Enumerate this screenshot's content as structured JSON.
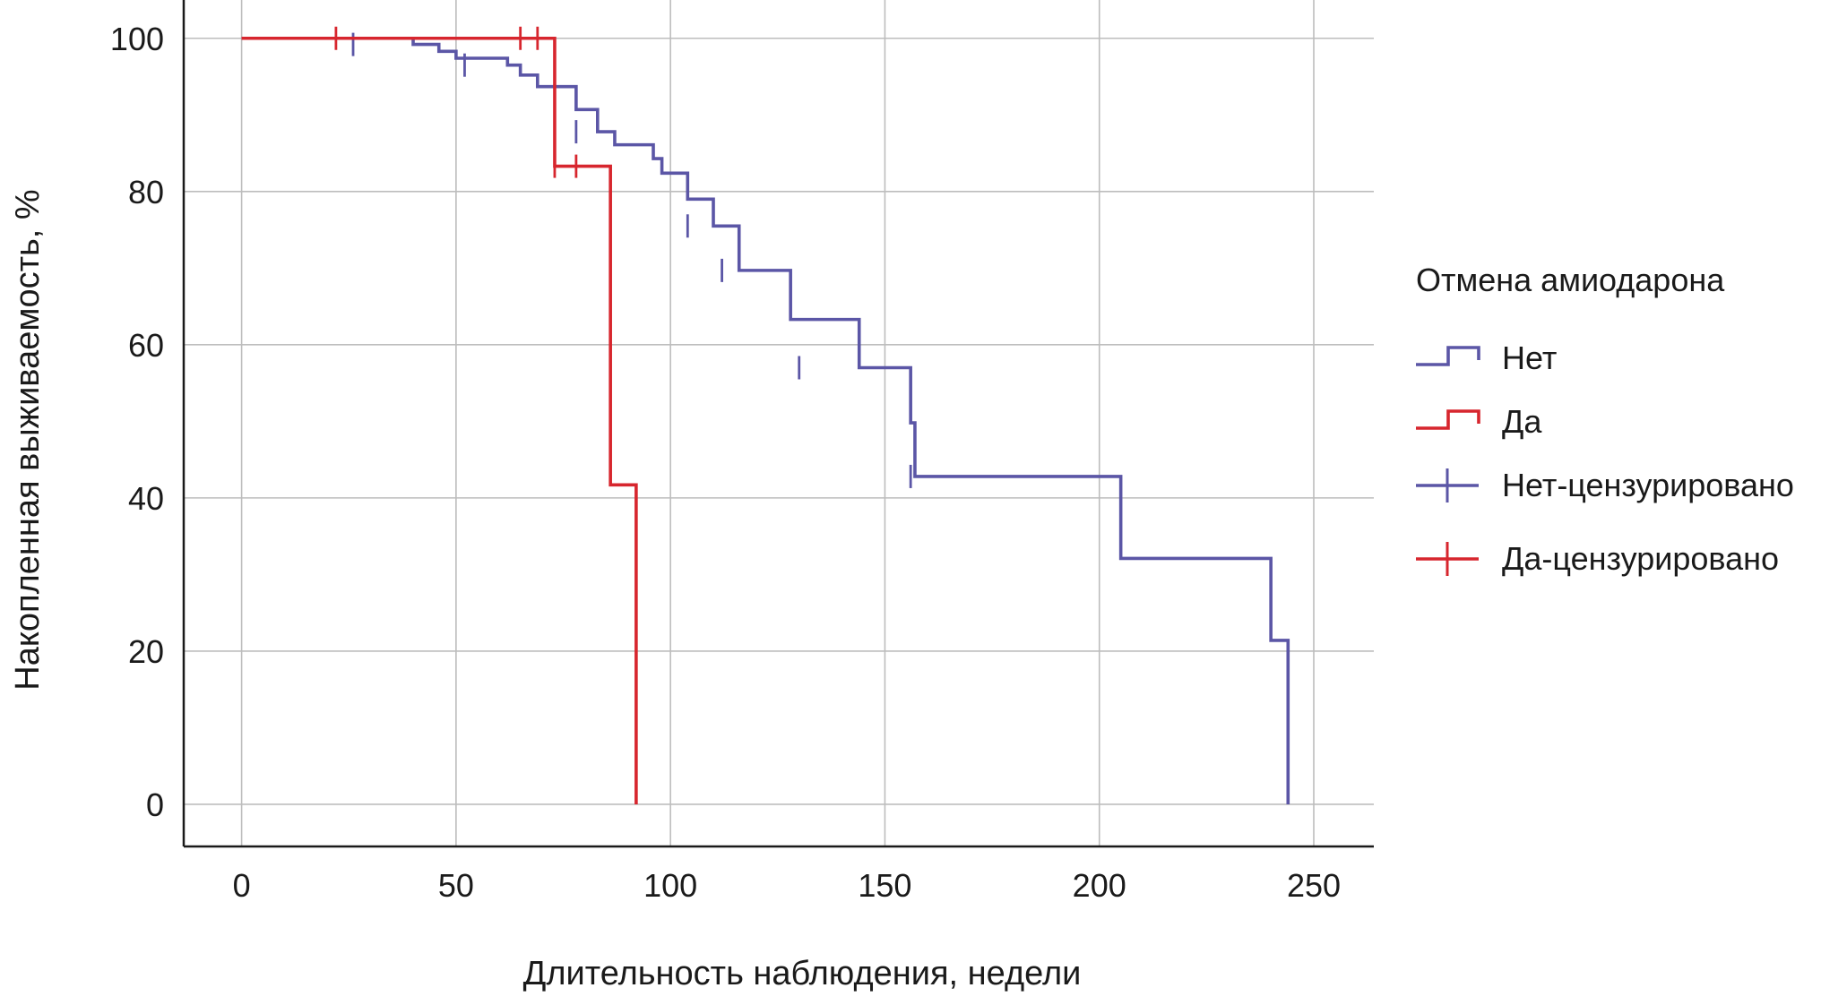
{
  "chart_data": {
    "type": "line",
    "title": "",
    "xlabel": "Длительность наблюдения, недели",
    "ylabel": "Накопленная выживаемость, %",
    "xlim": [
      -13.5,
      264
    ],
    "ylim": [
      -5.5,
      105
    ],
    "xticks": [
      0,
      50,
      100,
      150,
      200,
      250
    ],
    "yticks": [
      0,
      20,
      40,
      60,
      80,
      100
    ],
    "xtick_labels": [
      "0",
      "50",
      "100",
      "150",
      "200",
      "250"
    ],
    "ytick_labels": [
      "0",
      "20",
      "40",
      "60",
      "80",
      "100"
    ],
    "grid": true,
    "legend": {
      "title": "Отмена амиодарона",
      "position": "right",
      "entries": [
        {
          "label": "Нет",
          "marker": "step",
          "color": "#5b56a6"
        },
        {
          "label": "Да",
          "marker": "step",
          "color": "#d7262e"
        },
        {
          "label": "Нет-цензурировано",
          "marker": "plus",
          "color": "#5b56a6"
        },
        {
          "label": "Да-цензурировано",
          "marker": "plus",
          "color": "#d7262e"
        }
      ]
    },
    "series": [
      {
        "name": "Нет",
        "color": "#5b56a6",
        "step_x": [
          0,
          40,
          46,
          50,
          62,
          65,
          69,
          78,
          83,
          87,
          96,
          98,
          104,
          110,
          116,
          128,
          144,
          156,
          157,
          205,
          240,
          244
        ],
        "step_y": [
          100,
          99.2,
          98.3,
          97.4,
          96.5,
          95.2,
          93.7,
          90.7,
          87.8,
          86.1,
          84.3,
          82.4,
          79.0,
          75.5,
          69.7,
          63.3,
          57.0,
          49.8,
          42.8,
          32.1,
          21.4,
          10.7
        ],
        "end": [
          244,
          0
        ],
        "censored_x": [
          26,
          52,
          78,
          104,
          112,
          130,
          156
        ],
        "censored_y": [
          99.2,
          96.5,
          87.8,
          75.5,
          69.7,
          57.0,
          42.8
        ]
      },
      {
        "name": "Да",
        "color": "#d7262e",
        "step_x": [
          0,
          73,
          86,
          92
        ],
        "step_y": [
          100,
          83.3,
          41.7,
          0
        ],
        "end": [
          92,
          0
        ],
        "censored_x": [
          22,
          65,
          69,
          73,
          78
        ],
        "censored_y": [
          100,
          100,
          100,
          83.3,
          83.3
        ]
      }
    ]
  }
}
